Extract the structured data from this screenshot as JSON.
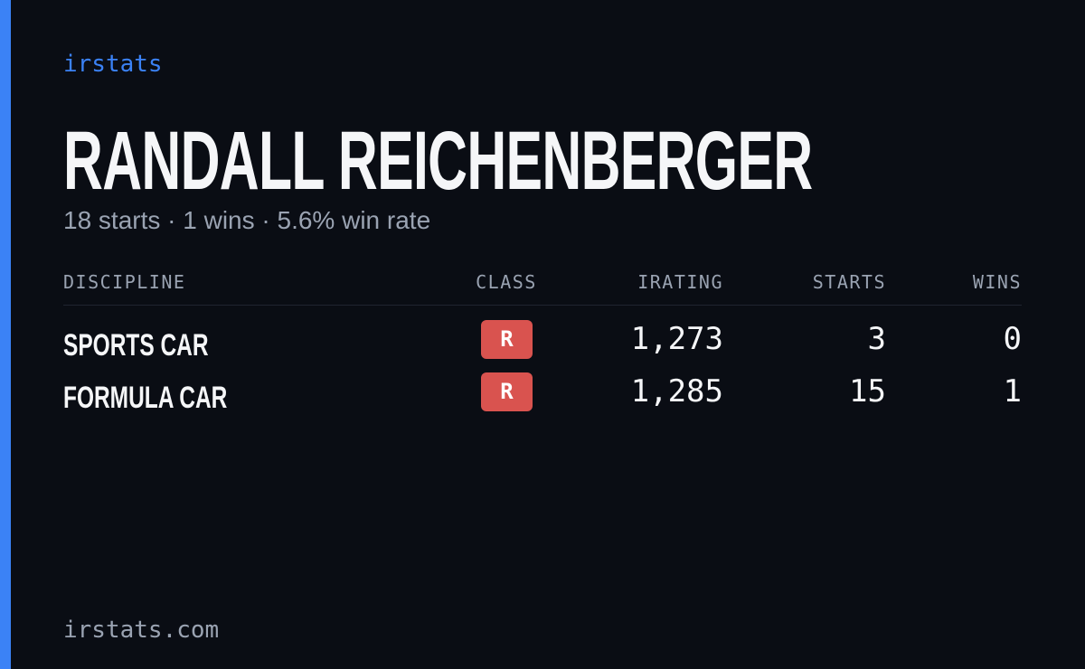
{
  "brand": "irstats",
  "name": "RANDALL REICHENBERGER",
  "summary": "18 starts · 1 wins · 5.6% win rate",
  "table": {
    "headers": [
      "DISCIPLINE",
      "CLASS",
      "IRATING",
      "STARTS",
      "WINS"
    ],
    "rows": [
      [
        "SPORTS CAR",
        "R",
        "1,273",
        "3",
        "0"
      ],
      [
        "FORMULA CAR",
        "R",
        "1,285",
        "15",
        "1"
      ]
    ]
  },
  "footer": "irstats.com"
}
